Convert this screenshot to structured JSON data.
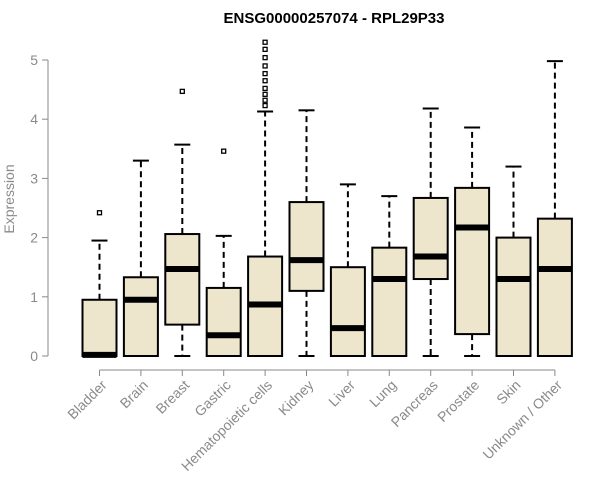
{
  "chart_data": {
    "type": "box",
    "title": "ENSG00000257074 - RPL29P33",
    "ylabel": "Expression",
    "xlabel": "",
    "ylim": [
      0,
      5.2
    ],
    "yticks": [
      0,
      1,
      2,
      3,
      4,
      5
    ],
    "grid": false,
    "colors": {
      "box_fill": "#ede5cc",
      "stroke": "#000000",
      "axis": "#8a8a8a"
    },
    "categories": [
      "Bladder",
      "Brain",
      "Breast",
      "Gastric",
      "Hematopoietic cells",
      "Kidney",
      "Liver",
      "Lung",
      "Pancreas",
      "Prostate",
      "Skin",
      "Unknown / Other"
    ],
    "boxes": [
      {
        "min": 0.0,
        "q1": 0.0,
        "median": 0.02,
        "q3": 0.95,
        "max": 1.95,
        "outliers": [
          2.42
        ]
      },
      {
        "min": 0.0,
        "q1": 0.0,
        "median": 0.95,
        "q3": 1.33,
        "max": 3.3,
        "outliers": []
      },
      {
        "min": 0.0,
        "q1": 0.53,
        "median": 1.47,
        "q3": 2.06,
        "max": 3.57,
        "outliers": [
          4.47
        ]
      },
      {
        "min": 0.0,
        "q1": 0.0,
        "median": 0.35,
        "q3": 1.15,
        "max": 2.03,
        "outliers": [
          3.46
        ]
      },
      {
        "min": 0.0,
        "q1": 0.0,
        "median": 0.87,
        "q3": 1.68,
        "max": 4.13,
        "outliers": [
          4.23,
          4.32,
          4.42,
          4.52,
          4.65,
          4.77,
          4.9,
          5.04,
          5.18,
          5.3
        ]
      },
      {
        "min": 0.0,
        "q1": 1.1,
        "median": 1.62,
        "q3": 2.6,
        "max": 4.15,
        "outliers": []
      },
      {
        "min": 0.0,
        "q1": 0.0,
        "median": 0.47,
        "q3": 1.5,
        "max": 2.9,
        "outliers": []
      },
      {
        "min": 0.0,
        "q1": 0.0,
        "median": 1.3,
        "q3": 1.83,
        "max": 2.7,
        "outliers": []
      },
      {
        "min": 0.0,
        "q1": 1.3,
        "median": 1.68,
        "q3": 2.67,
        "max": 4.18,
        "outliers": []
      },
      {
        "min": 0.0,
        "q1": 0.37,
        "median": 2.17,
        "q3": 2.84,
        "max": 3.86,
        "outliers": []
      },
      {
        "min": 0.0,
        "q1": 0.0,
        "median": 1.3,
        "q3": 2.0,
        "max": 3.2,
        "outliers": []
      },
      {
        "min": 0.0,
        "q1": 0.0,
        "median": 1.47,
        "q3": 2.32,
        "max": 4.98,
        "outliers": []
      }
    ]
  }
}
